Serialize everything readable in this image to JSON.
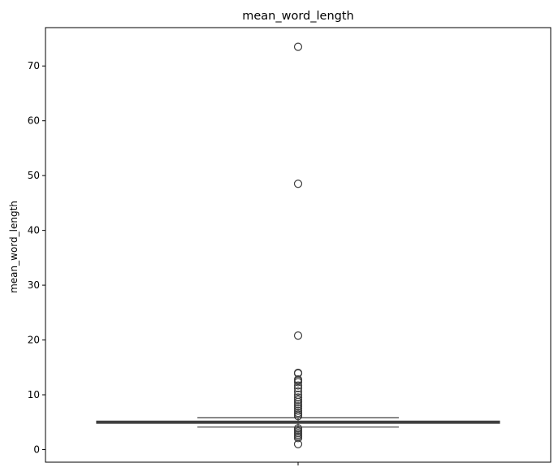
{
  "chart_data": {
    "type": "box",
    "title": "mean_word_length",
    "xlabel": "",
    "ylabel": "mean_word_length",
    "ylim": [
      -2.3,
      77.0
    ],
    "yticks": [
      0,
      10,
      20,
      30,
      40,
      50,
      60,
      70
    ],
    "grid": false,
    "box": {
      "color": "#3b6e9b",
      "q1": 4.8,
      "median": 5.0,
      "q3": 5.2,
      "whisker_low": 4.1,
      "whisker_high": 5.8
    },
    "outliers": [
      73.5,
      48.5,
      20.8,
      14.0,
      13.9,
      12.8,
      12.6,
      12.3,
      11.7,
      11.2,
      10.6,
      10.0,
      9.5,
      9.1,
      8.7,
      8.3,
      7.9,
      7.5,
      7.1,
      6.7,
      6.4,
      6.1,
      3.9,
      3.6,
      3.3,
      3.0,
      2.7,
      2.4,
      2.1,
      1.0
    ]
  }
}
